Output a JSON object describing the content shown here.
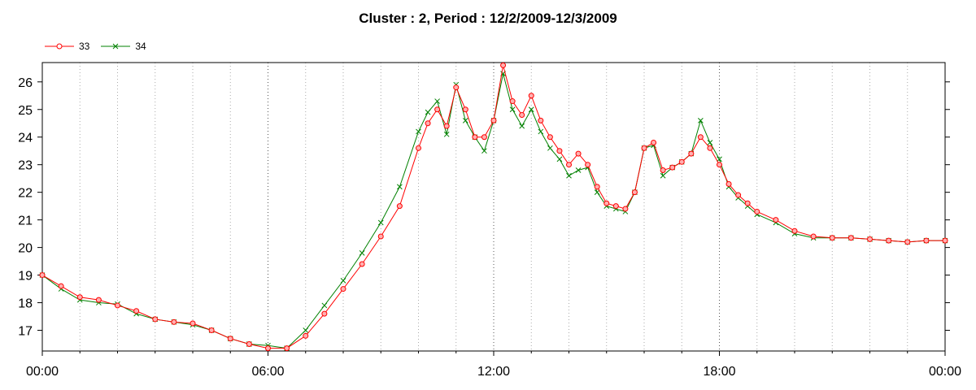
{
  "chart_data": {
    "type": "line",
    "title": "Cluster : 2, Period : 12/2/2009-12/3/2009",
    "xlabel": "",
    "ylabel": "",
    "x_tick_labels": [
      "00:00",
      "06:00",
      "12:00",
      "18:00",
      "00:00"
    ],
    "y_tick_labels": [
      "17",
      "18",
      "19",
      "20",
      "21",
      "22",
      "23",
      "24",
      "25",
      "26"
    ],
    "xlim_hours": [
      0,
      24
    ],
    "ylim": [
      16.25,
      26.7
    ],
    "grid": "vertical dotted",
    "legend_position": "top-left",
    "series": [
      {
        "name": "33",
        "color": "#ff0000",
        "marker": "circle",
        "x_hours": [
          0,
          0.5,
          1,
          1.5,
          2,
          2.5,
          3,
          3.5,
          4,
          4.5,
          5,
          5.5,
          6,
          6.5,
          7,
          7.5,
          8,
          8.5,
          9,
          9.5,
          10,
          10.25,
          10.5,
          10.75,
          11,
          11.25,
          11.5,
          11.75,
          12,
          12.25,
          12.5,
          12.75,
          13,
          13.25,
          13.5,
          13.75,
          14,
          14.25,
          14.5,
          14.75,
          15,
          15.25,
          15.5,
          15.75,
          16,
          16.25,
          16.5,
          16.75,
          17,
          17.25,
          17.5,
          17.75,
          18,
          18.25,
          18.5,
          18.75,
          19,
          19.5,
          20,
          20.5,
          21,
          21.5,
          22,
          22.5,
          23,
          23.5,
          24
        ],
        "values": [
          19.0,
          18.6,
          18.2,
          18.1,
          17.9,
          17.7,
          17.4,
          17.3,
          17.25,
          17.0,
          16.7,
          16.5,
          16.35,
          16.35,
          16.8,
          17.6,
          18.5,
          19.4,
          20.4,
          21.5,
          23.6,
          24.5,
          25.0,
          24.4,
          25.8,
          25.0,
          24.0,
          24.0,
          24.6,
          26.6,
          25.3,
          24.8,
          25.5,
          24.6,
          24.0,
          23.5,
          23.0,
          23.4,
          23.0,
          22.2,
          21.6,
          21.5,
          21.4,
          22.0,
          23.6,
          23.8,
          22.8,
          22.9,
          23.1,
          23.4,
          24.0,
          23.6,
          23.0,
          22.3,
          21.9,
          21.6,
          21.3,
          21.0,
          20.6,
          20.4,
          20.35,
          20.35,
          20.3,
          20.25,
          20.2,
          20.25,
          20.25
        ]
      },
      {
        "name": "34",
        "color": "#008000",
        "marker": "x",
        "x_hours": [
          0,
          0.5,
          1,
          1.5,
          2,
          2.5,
          3,
          3.5,
          4,
          4.5,
          5,
          5.5,
          6,
          6.5,
          7,
          7.5,
          8,
          8.5,
          9,
          9.5,
          10,
          10.25,
          10.5,
          10.75,
          11,
          11.25,
          11.5,
          11.75,
          12,
          12.25,
          12.5,
          12.75,
          13,
          13.25,
          13.5,
          13.75,
          14,
          14.25,
          14.5,
          14.75,
          15,
          15.25,
          15.5,
          15.75,
          16,
          16.25,
          16.5,
          16.75,
          17,
          17.25,
          17.5,
          17.75,
          18,
          18.25,
          18.5,
          18.75,
          19,
          19.5,
          20,
          20.5,
          21,
          21.5,
          22,
          22.5,
          23,
          23.5,
          24
        ],
        "values": [
          19.0,
          18.5,
          18.1,
          18.0,
          17.95,
          17.6,
          17.4,
          17.3,
          17.2,
          17.0,
          16.7,
          16.5,
          16.45,
          16.35,
          17.0,
          17.9,
          18.8,
          19.8,
          20.9,
          22.2,
          24.2,
          24.9,
          25.3,
          24.1,
          25.9,
          24.6,
          24.0,
          23.5,
          24.6,
          26.3,
          25.0,
          24.4,
          25.0,
          24.2,
          23.6,
          23.2,
          22.6,
          22.8,
          22.9,
          22.0,
          21.5,
          21.4,
          21.3,
          22.0,
          23.6,
          23.7,
          22.6,
          22.9,
          23.1,
          23.4,
          24.6,
          23.8,
          23.2,
          22.2,
          21.8,
          21.5,
          21.2,
          20.9,
          20.5,
          20.35,
          20.35,
          20.35,
          20.3,
          20.25,
          20.2,
          20.25,
          20.25
        ]
      }
    ]
  }
}
